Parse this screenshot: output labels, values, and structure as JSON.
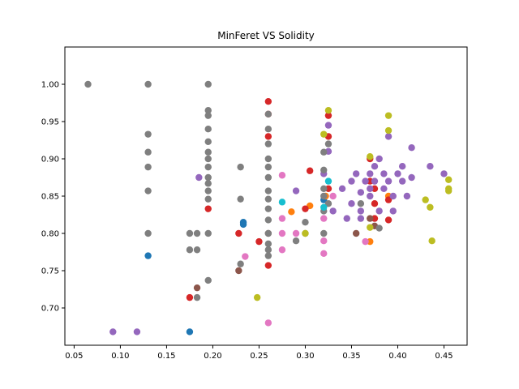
{
  "chart_data": {
    "type": "scatter",
    "title": "MinFeret VS Solidity",
    "xlabel": "",
    "ylabel": "",
    "xlim": [
      0.04,
      0.475
    ],
    "ylim": [
      0.65,
      1.05
    ],
    "x_ticks": [
      "0.05",
      "0.10",
      "0.15",
      "0.20",
      "0.25",
      "0.30",
      "0.35",
      "0.40",
      "0.45"
    ],
    "y_ticks": [
      "0.70",
      "0.75",
      "0.80",
      "0.85",
      "0.90",
      "0.95",
      "1.00"
    ],
    "grid": false,
    "legend": "none",
    "series": [
      {
        "color": "#1f77b4",
        "points": [
          [
            0.13,
            0.77
          ],
          [
            0.175,
            0.668
          ],
          [
            0.233,
            0.815
          ],
          [
            0.233,
            0.812
          ],
          [
            0.32,
            0.845
          ]
        ]
      },
      {
        "color": "#ff7f0e",
        "points": [
          [
            0.285,
            0.829
          ],
          [
            0.305,
            0.837
          ],
          [
            0.322,
            0.85
          ],
          [
            0.37,
            0.789
          ],
          [
            0.39,
            0.85
          ]
        ]
      },
      {
        "color": "#d62728",
        "points": [
          [
            0.175,
            0.714
          ],
          [
            0.195,
            0.833
          ],
          [
            0.228,
            0.8
          ],
          [
            0.25,
            0.789
          ],
          [
            0.26,
            0.977
          ],
          [
            0.26,
            0.96
          ],
          [
            0.26,
            0.93
          ],
          [
            0.26,
            0.757
          ],
          [
            0.3,
            0.833
          ],
          [
            0.305,
            0.884
          ],
          [
            0.325,
            0.958
          ],
          [
            0.325,
            0.93
          ],
          [
            0.325,
            0.86
          ],
          [
            0.37,
            0.9
          ],
          [
            0.37,
            0.87
          ],
          [
            0.375,
            0.86
          ],
          [
            0.375,
            0.84
          ],
          [
            0.375,
            0.82
          ],
          [
            0.39,
            0.818
          ],
          [
            0.39,
            0.845
          ]
        ]
      },
      {
        "color": "#9467bd",
        "points": [
          [
            0.092,
            0.668
          ],
          [
            0.118,
            0.668
          ],
          [
            0.185,
            0.875
          ],
          [
            0.29,
            0.857
          ],
          [
            0.32,
            0.88
          ],
          [
            0.325,
            0.945
          ],
          [
            0.325,
            0.91
          ],
          [
            0.33,
            0.83
          ],
          [
            0.34,
            0.86
          ],
          [
            0.35,
            0.87
          ],
          [
            0.35,
            0.84
          ],
          [
            0.355,
            0.88
          ],
          [
            0.36,
            0.83
          ],
          [
            0.36,
            0.82
          ],
          [
            0.365,
            0.87
          ],
          [
            0.37,
            0.88
          ],
          [
            0.37,
            0.86
          ],
          [
            0.37,
            0.85
          ],
          [
            0.375,
            0.89
          ],
          [
            0.375,
            0.87
          ],
          [
            0.38,
            0.9
          ],
          [
            0.38,
            0.83
          ],
          [
            0.385,
            0.88
          ],
          [
            0.385,
            0.86
          ],
          [
            0.39,
            0.93
          ],
          [
            0.39,
            0.87
          ],
          [
            0.395,
            0.85
          ],
          [
            0.4,
            0.88
          ],
          [
            0.405,
            0.87
          ],
          [
            0.405,
            0.89
          ],
          [
            0.41,
            0.85
          ],
          [
            0.415,
            0.915
          ],
          [
            0.415,
            0.875
          ],
          [
            0.435,
            0.89
          ],
          [
            0.45,
            0.88
          ],
          [
            0.345,
            0.82
          ],
          [
            0.36,
            0.855
          ],
          [
            0.395,
            0.83
          ]
        ]
      },
      {
        "color": "#8c564b",
        "points": [
          [
            0.183,
            0.727
          ],
          [
            0.228,
            0.75
          ],
          [
            0.26,
            0.8
          ],
          [
            0.355,
            0.8
          ],
          [
            0.37,
            0.82
          ],
          [
            0.375,
            0.81
          ]
        ]
      },
      {
        "color": "#e377c2",
        "points": [
          [
            0.235,
            0.769
          ],
          [
            0.26,
            0.68
          ],
          [
            0.275,
            0.878
          ],
          [
            0.275,
            0.82
          ],
          [
            0.275,
            0.8
          ],
          [
            0.275,
            0.778
          ],
          [
            0.29,
            0.8
          ],
          [
            0.32,
            0.79
          ],
          [
            0.32,
            0.773
          ],
          [
            0.32,
            0.82
          ],
          [
            0.365,
            0.789
          ],
          [
            0.33,
            0.85
          ]
        ]
      },
      {
        "color": "#7f7f7f",
        "points": [
          [
            0.065,
            1.0
          ],
          [
            0.13,
            1.0
          ],
          [
            0.13,
            0.933
          ],
          [
            0.13,
            0.909
          ],
          [
            0.13,
            0.889
          ],
          [
            0.13,
            0.857
          ],
          [
            0.13,
            0.8
          ],
          [
            0.175,
            0.8
          ],
          [
            0.175,
            0.778
          ],
          [
            0.183,
            0.8
          ],
          [
            0.183,
            0.778
          ],
          [
            0.183,
            0.714
          ],
          [
            0.195,
            1.0
          ],
          [
            0.195,
            0.965
          ],
          [
            0.195,
            0.958
          ],
          [
            0.195,
            0.94
          ],
          [
            0.195,
            0.923
          ],
          [
            0.195,
            0.909
          ],
          [
            0.195,
            0.9
          ],
          [
            0.195,
            0.889
          ],
          [
            0.195,
            0.875
          ],
          [
            0.195,
            0.867
          ],
          [
            0.195,
            0.857
          ],
          [
            0.195,
            0.846
          ],
          [
            0.195,
            0.8
          ],
          [
            0.195,
            0.737
          ],
          [
            0.23,
            0.889
          ],
          [
            0.23,
            0.846
          ],
          [
            0.23,
            0.759
          ],
          [
            0.26,
            0.96
          ],
          [
            0.26,
            0.94
          ],
          [
            0.26,
            0.92
          ],
          [
            0.26,
            0.9
          ],
          [
            0.26,
            0.889
          ],
          [
            0.26,
            0.875
          ],
          [
            0.26,
            0.857
          ],
          [
            0.26,
            0.846
          ],
          [
            0.26,
            0.833
          ],
          [
            0.26,
            0.818
          ],
          [
            0.26,
            0.8
          ],
          [
            0.26,
            0.786
          ],
          [
            0.26,
            0.778
          ],
          [
            0.26,
            0.77
          ],
          [
            0.29,
            0.79
          ],
          [
            0.3,
            0.8
          ],
          [
            0.3,
            0.815
          ],
          [
            0.32,
            0.909
          ],
          [
            0.32,
            0.885
          ],
          [
            0.32,
            0.86
          ],
          [
            0.32,
            0.85
          ],
          [
            0.32,
            0.83
          ],
          [
            0.32,
            0.8
          ],
          [
            0.325,
            0.92
          ],
          [
            0.325,
            0.84
          ],
          [
            0.36,
            0.84
          ],
          [
            0.38,
            0.807
          ]
        ]
      },
      {
        "color": "#bcbd22",
        "points": [
          [
            0.248,
            0.714
          ],
          [
            0.3,
            0.8
          ],
          [
            0.32,
            0.933
          ],
          [
            0.325,
            0.965
          ],
          [
            0.37,
            0.903
          ],
          [
            0.37,
            0.808
          ],
          [
            0.39,
            0.958
          ],
          [
            0.39,
            0.938
          ],
          [
            0.43,
            0.845
          ],
          [
            0.435,
            0.835
          ],
          [
            0.437,
            0.79
          ],
          [
            0.455,
            0.872
          ],
          [
            0.455,
            0.86
          ],
          [
            0.455,
            0.857
          ]
        ]
      },
      {
        "color": "#17becf",
        "points": [
          [
            0.275,
            0.842
          ],
          [
            0.32,
            0.835
          ],
          [
            0.325,
            0.87
          ]
        ]
      }
    ]
  }
}
